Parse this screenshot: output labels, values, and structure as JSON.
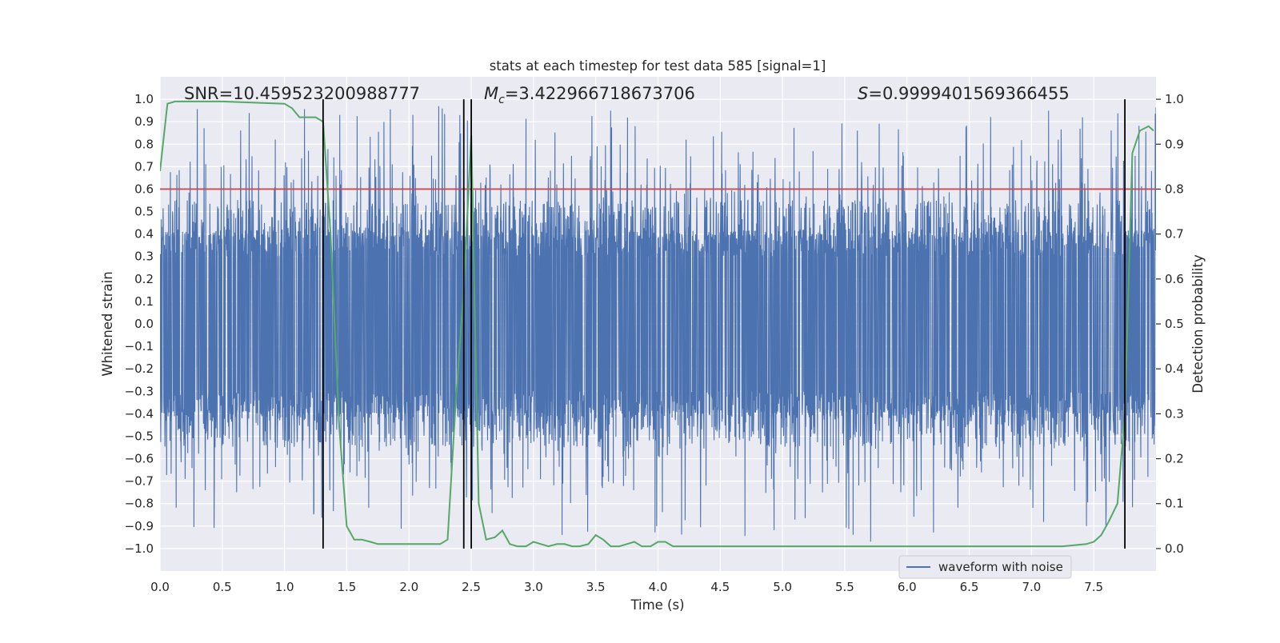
{
  "chart_data": {
    "type": "line",
    "title": "stats at each timestep for test data 585 [signal=1]",
    "xlabel": "Time (s)",
    "ylabel": "Whitened strain",
    "y2label": "Detection probability",
    "xlim": [
      0.0,
      8.0
    ],
    "ylim": [
      -1.1,
      1.1
    ],
    "y2lim": [
      -0.05,
      1.05
    ],
    "xticks": [
      "0.0",
      "0.5",
      "1.0",
      "1.5",
      "2.0",
      "2.5",
      "3.0",
      "3.5",
      "4.0",
      "4.5",
      "5.0",
      "5.5",
      "6.0",
      "6.5",
      "7.0",
      "7.5"
    ],
    "yticks": [
      "−1.0",
      "−0.9",
      "−0.8",
      "−0.7",
      "−0.6",
      "−0.5",
      "−0.4",
      "−0.3",
      "−0.2",
      "−0.1",
      "0.0",
      "0.1",
      "0.2",
      "0.3",
      "0.4",
      "0.5",
      "0.6",
      "0.7",
      "0.8",
      "0.9",
      "1.0"
    ],
    "y2ticks": [
      "0.0",
      "0.1",
      "0.2",
      "0.3",
      "0.4",
      "0.5",
      "0.6",
      "0.7",
      "0.8",
      "0.9",
      "1.0"
    ],
    "grid": true,
    "legend_placement": "lower-right",
    "annotations": {
      "snr": "SNR=10.459523200988777",
      "mc_symbol": "M",
      "mc_sub": "c",
      "mc_value": "=3.422966718673706",
      "s_symbol": "S",
      "s_value": "=0.9999401569366455"
    },
    "threshold_probability": 0.8,
    "vertical_lines_x": [
      1.31,
      2.44,
      2.5,
      7.75
    ],
    "series": [
      {
        "name": "waveform with noise",
        "color": "#4c72b0",
        "axis": "left",
        "kind": "noise",
        "envelope_typical": 0.4,
        "peak_max": 1.0,
        "peak_min": -1.0
      },
      {
        "color": "#55a868",
        "axis": "right",
        "x": [
          0.0,
          0.06,
          0.12,
          0.5,
          1.0,
          1.06,
          1.12,
          1.19,
          1.25,
          1.31,
          1.37,
          1.44,
          1.5,
          1.56,
          1.62,
          1.69,
          1.75,
          1.81,
          1.87,
          1.94,
          2.0,
          2.06,
          2.12,
          2.19,
          2.25,
          2.31,
          2.37,
          2.44,
          2.5,
          2.56,
          2.62,
          2.69,
          2.75,
          2.81,
          2.87,
          2.94,
          3.0,
          3.06,
          3.12,
          3.19,
          3.25,
          3.31,
          3.37,
          3.44,
          3.5,
          3.56,
          3.62,
          3.69,
          3.75,
          3.81,
          3.87,
          3.94,
          4.0,
          4.06,
          4.12,
          4.19,
          4.25,
          4.31,
          4.37,
          4.44,
          4.5,
          4.56,
          4.62,
          4.69,
          4.75,
          4.81,
          4.87,
          4.94,
          5.0,
          5.5,
          6.0,
          6.5,
          7.0,
          7.25,
          7.44,
          7.5,
          7.56,
          7.62,
          7.69,
          7.75,
          7.81,
          7.87,
          7.94,
          7.98
        ],
        "y": [
          0.84,
          0.99,
          0.995,
          0.995,
          0.99,
          0.98,
          0.96,
          0.96,
          0.96,
          0.95,
          0.7,
          0.27,
          0.05,
          0.02,
          0.02,
          0.015,
          0.01,
          0.01,
          0.01,
          0.01,
          0.01,
          0.01,
          0.01,
          0.01,
          0.01,
          0.02,
          0.3,
          0.58,
          0.92,
          0.1,
          0.02,
          0.025,
          0.04,
          0.01,
          0.005,
          0.005,
          0.015,
          0.01,
          0.005,
          0.01,
          0.01,
          0.005,
          0.005,
          0.01,
          0.03,
          0.02,
          0.005,
          0.005,
          0.01,
          0.015,
          0.005,
          0.005,
          0.015,
          0.015,
          0.005,
          0.005,
          0.005,
          0.005,
          0.005,
          0.005,
          0.005,
          0.005,
          0.005,
          0.005,
          0.005,
          0.005,
          0.005,
          0.005,
          0.005,
          0.005,
          0.005,
          0.005,
          0.005,
          0.005,
          0.01,
          0.015,
          0.03,
          0.06,
          0.1,
          0.3,
          0.88,
          0.93,
          0.94,
          0.93
        ]
      },
      {
        "color": "#c44e52",
        "axis": "right",
        "kind": "hline",
        "y": 0.8
      }
    ]
  }
}
